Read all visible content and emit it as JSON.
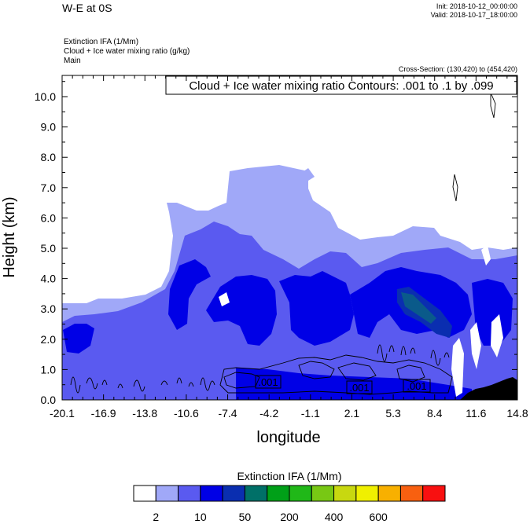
{
  "header": {
    "title": "W-E at 0S",
    "init": "Init: 2018-10-12_00:00:00",
    "valid": "Valid: 2018-10-17_18:00:00",
    "field_lines": [
      "Extinction IFA   (1/Mm)",
      "Cloud + Ice water mixing ratio   (g/kg)",
      "Main"
    ],
    "cross_section": "Cross-Section: (130,420) to (454,420)"
  },
  "chart_data": {
    "type": "contour",
    "annotation": "Cloud + Ice water mixing ratio Contours: .001 to .1 by .099",
    "xlabel": "longitude",
    "ylabel": "Height (km)",
    "xlim": [
      -20.1,
      14.8
    ],
    "ylim": [
      0.0,
      10.7
    ],
    "x_ticks": [
      "-20.1",
      "-16.9",
      "-13.8",
      "-10.6",
      "-7.4",
      "-4.2",
      "-1.1",
      "2.1",
      "5.3",
      "8.4",
      "11.6",
      "14.8"
    ],
    "y_ticks": [
      "0.0",
      "1.0",
      "2.0",
      "3.0",
      "4.0",
      "5.0",
      "6.0",
      "7.0",
      "8.0",
      "9.0",
      "10.0"
    ],
    "contour_labels": [
      {
        "text": ".001",
        "lon": -3.5,
        "height": 0.55
      },
      {
        "text": ".001",
        "lon": 3.5,
        "height": 0.4
      },
      {
        "text": ".001",
        "lon": 7.8,
        "height": 0.45
      }
    ],
    "colorbar": {
      "title": "Extinction IFA  (1/Mm)",
      "colors": [
        "#ffffff",
        "#a0a8f8",
        "#5a5af0",
        "#0000e6",
        "#0a2eb0",
        "#007068",
        "#00a018",
        "#20b818",
        "#78c814",
        "#c8d810",
        "#f0f000",
        "#f8b000",
        "#f86010",
        "#f81010"
      ],
      "labels": [
        "2",
        "10",
        "50",
        "200",
        "400",
        "600"
      ]
    }
  }
}
